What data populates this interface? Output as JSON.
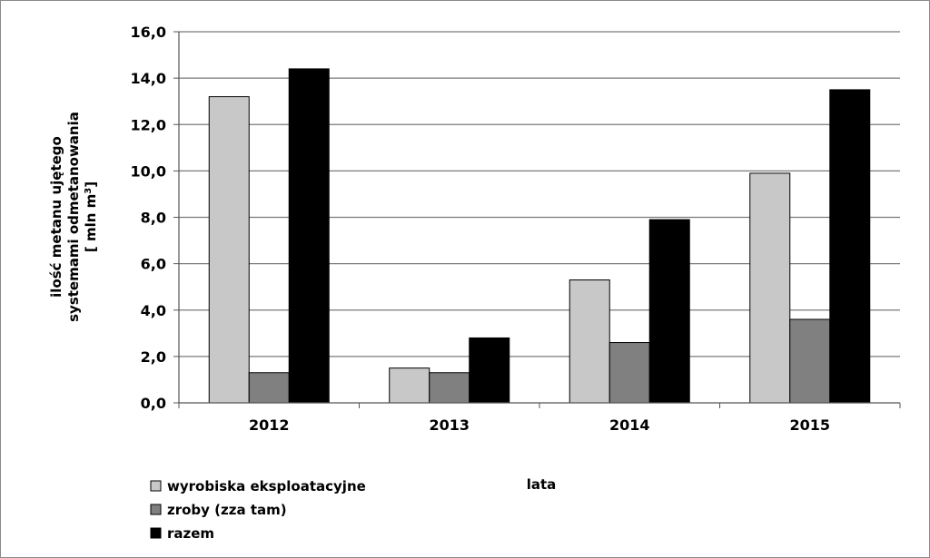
{
  "chart_data": {
    "type": "bar",
    "categories": [
      "2012",
      "2013",
      "2014",
      "2015"
    ],
    "series": [
      {
        "name": "wyrobiska eksploatacyjne",
        "values": [
          13.2,
          1.5,
          5.3,
          9.9
        ],
        "color": "#c8c8c8"
      },
      {
        "name": "zroby (zza tam)",
        "values": [
          1.3,
          1.3,
          2.6,
          3.6
        ],
        "color": "#808080"
      },
      {
        "name": "razem",
        "values": [
          14.4,
          2.8,
          7.9,
          13.5
        ],
        "color": "#000000"
      }
    ],
    "y_ticks": [
      "0,0",
      "2,0",
      "4,0",
      "6,0",
      "8,0",
      "10,0",
      "12,0",
      "14,0",
      "16,0"
    ],
    "ylim": [
      0,
      16
    ],
    "ylabel_lines": [
      "ilość metanu ujętego",
      "systemami odmetanowania",
      "[ mln m",
      "3",
      "]"
    ],
    "xlabel": "lata",
    "grid": true,
    "legend_position": "bottom-left"
  }
}
